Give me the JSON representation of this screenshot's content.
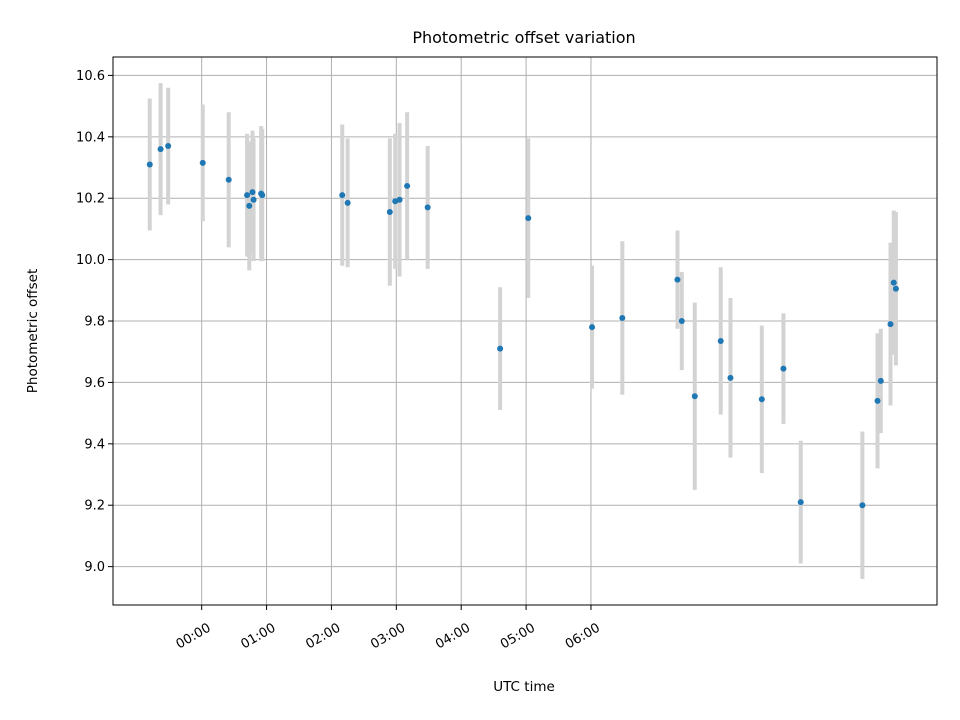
{
  "chart_data": {
    "type": "scatter",
    "title": "Photometric offset variation",
    "xlabel": "UTC time",
    "ylabel": "Photometric offset",
    "x_unit": "minutes after 00:00 UTC",
    "xlim": [
      -82,
      680
    ],
    "ylim": [
      8.875,
      10.66
    ],
    "grid": true,
    "x_ticks": [
      {
        "value": 0,
        "label": "00:00"
      },
      {
        "value": 60,
        "label": "01:00"
      },
      {
        "value": 120,
        "label": "02:00"
      },
      {
        "value": 180,
        "label": "03:00"
      },
      {
        "value": 240,
        "label": "04:00"
      },
      {
        "value": 300,
        "label": "05:00"
      },
      {
        "value": 360,
        "label": "06:00"
      }
    ],
    "y_ticks": [
      {
        "value": 9.0,
        "label": "9.0"
      },
      {
        "value": 9.2,
        "label": "9.2"
      },
      {
        "value": 9.4,
        "label": "9.4"
      },
      {
        "value": 9.6,
        "label": "9.6"
      },
      {
        "value": 9.8,
        "label": "9.8"
      },
      {
        "value": 10.0,
        "label": "10.0"
      },
      {
        "value": 10.2,
        "label": "10.2"
      },
      {
        "value": 10.4,
        "label": "10.4"
      },
      {
        "value": 10.6,
        "label": "10.6"
      }
    ],
    "series": [
      {
        "marker_color": "#1f77b4",
        "errorbar_color": "#d3d3d3",
        "points": [
          {
            "x": -48,
            "y": 10.31,
            "err": 0.215
          },
          {
            "x": -38,
            "y": 10.36,
            "err": 0.215
          },
          {
            "x": -31,
            "y": 10.37,
            "err": 0.19
          },
          {
            "x": 1,
            "y": 10.315,
            "err": 0.19
          },
          {
            "x": 25,
            "y": 10.26,
            "err": 0.22
          },
          {
            "x": 42,
            "y": 10.21,
            "err": 0.2
          },
          {
            "x": 44,
            "y": 10.175,
            "err": 0.21
          },
          {
            "x": 47,
            "y": 10.22,
            "err": 0.2
          },
          {
            "x": 48,
            "y": 10.195,
            "err": 0.2
          },
          {
            "x": 55,
            "y": 10.215,
            "err": 0.22
          },
          {
            "x": 56,
            "y": 10.21,
            "err": 0.215
          },
          {
            "x": 130,
            "y": 10.21,
            "err": 0.23
          },
          {
            "x": 135,
            "y": 10.185,
            "err": 0.21
          },
          {
            "x": 174,
            "y": 10.155,
            "err": 0.24
          },
          {
            "x": 179,
            "y": 10.19,
            "err": 0.22
          },
          {
            "x": 183,
            "y": 10.195,
            "err": 0.25
          },
          {
            "x": 190,
            "y": 10.24,
            "err": 0.24
          },
          {
            "x": 209,
            "y": 10.17,
            "err": 0.2
          },
          {
            "x": 276,
            "y": 9.71,
            "err": 0.2
          },
          {
            "x": 302,
            "y": 10.135,
            "err": 0.26
          },
          {
            "x": 361,
            "y": 9.78,
            "err": 0.2
          },
          {
            "x": 389,
            "y": 9.81,
            "err": 0.25
          },
          {
            "x": 440,
            "y": 9.935,
            "err": 0.16
          },
          {
            "x": 444,
            "y": 9.8,
            "err": 0.16
          },
          {
            "x": 456,
            "y": 9.555,
            "err": 0.305
          },
          {
            "x": 480,
            "y": 9.735,
            "err": 0.24
          },
          {
            "x": 489,
            "y": 9.615,
            "err": 0.26
          },
          {
            "x": 518,
            "y": 9.545,
            "err": 0.24
          },
          {
            "x": 538,
            "y": 9.645,
            "err": 0.18
          },
          {
            "x": 554,
            "y": 9.21,
            "err": 0.2
          },
          {
            "x": 611,
            "y": 9.2,
            "err": 0.24
          },
          {
            "x": 625,
            "y": 9.54,
            "err": 0.22
          },
          {
            "x": 628,
            "y": 9.605,
            "err": 0.17
          },
          {
            "x": 637,
            "y": 9.79,
            "err": 0.265
          },
          {
            "x": 640,
            "y": 9.925,
            "err": 0.235
          },
          {
            "x": 642,
            "y": 9.905,
            "err": 0.25
          }
        ]
      }
    ]
  }
}
